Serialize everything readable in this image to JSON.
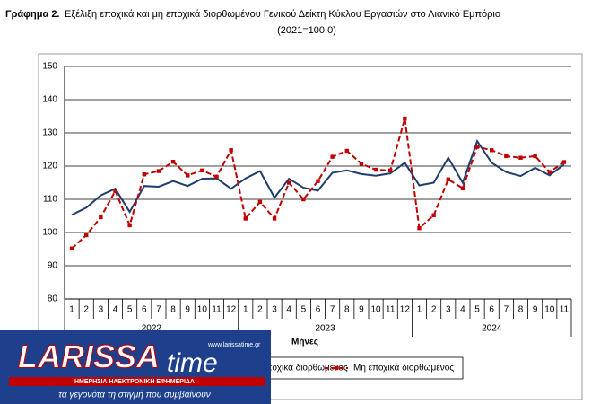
{
  "chart_data": {
    "type": "line",
    "title_label": "Γράφημα 2.",
    "title": "Εξέλιξη εποχικά και μη εποχικά διορθωμένου Γενικού Δείκτη Κύκλου Εργασιών στο Λιανικό Εμπόριο",
    "subtitle": "(2021=100,0)",
    "x_label": "Μήνες",
    "categories": [
      "1",
      "2",
      "3",
      "4",
      "5",
      "6",
      "7",
      "8",
      "9",
      "10",
      "11",
      "12",
      "1",
      "2",
      "3",
      "4",
      "5",
      "6",
      "7",
      "8",
      "9",
      "10",
      "11",
      "12",
      "1",
      "2",
      "3",
      "4",
      "5",
      "6",
      "7",
      "8",
      "9",
      "10",
      "11"
    ],
    "groups": [
      "2022",
      "2023",
      "2024"
    ],
    "ylim": [
      80,
      150
    ],
    "yticks": [
      80,
      90,
      100,
      110,
      120,
      130,
      140,
      150
    ],
    "grid": true,
    "series": [
      {
        "name": "Εποχικά διορθωμένος",
        "color": "#1f3e6e",
        "dashed": false,
        "markers": false,
        "values": [
          105.3,
          107.5,
          111.2,
          113.2,
          106.2,
          114,
          113.8,
          115.5,
          114,
          116.2,
          116.3,
          113.2,
          116.3,
          118.5,
          110.5,
          116.2,
          113.5,
          112.6,
          118,
          118.7,
          117.6,
          117.1,
          117.8,
          121,
          114.2,
          115,
          122.5,
          115,
          127.5,
          121,
          118.2,
          117,
          119.5,
          117.2,
          120.5
        ]
      },
      {
        "name": "Μη εποχικά διορθωμένος",
        "color": "#c00000",
        "dashed": true,
        "markers": true,
        "values": [
          95.2,
          99.2,
          104.6,
          112.5,
          102.2,
          117.5,
          118.5,
          121.3,
          117.2,
          118.7,
          116.8,
          124.8,
          104.2,
          109.2,
          104.2,
          115,
          110,
          115.5,
          122.8,
          124.6,
          120.7,
          118.9,
          118.7,
          134.3,
          101.3,
          105.2,
          116,
          113.3,
          125.8,
          124.8,
          123,
          122.5,
          123,
          118.2,
          121.2
        ]
      }
    ]
  },
  "logo": {
    "name_part1": "LARISSA",
    "name_part2": "time",
    "url": "www.larissatime.gr",
    "strap": "ΗΜΕΡΗΣΙΑ ΗΛΕΚΤΡΟΝΙΚΗ ΕΦΗΜΕΡΙΔΑ",
    "tagline": "τα γεγονότα τη στιγμή που συμβαίνουν"
  }
}
